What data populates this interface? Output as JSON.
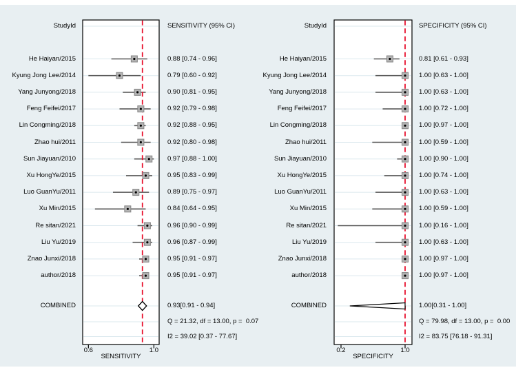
{
  "colors": {
    "background": "#e8eff2",
    "plot_bg": "#ffffff",
    "plot_border": "#000000",
    "gridline": "#dbe8ee",
    "ci_line": "#565656",
    "marker_fill": "#b4b4b4",
    "marker_border": "#848484",
    "marker_dot": "#000000",
    "reference_line": "#e8112d",
    "combined_fill": "#ffffff",
    "combined_border": "#000000",
    "text": "#000000"
  },
  "chart_data": {
    "type": "forest",
    "panels": [
      {
        "id": "sensitivity",
        "study_col_header": "StudyId",
        "value_col_header": "SENSITIVITY (95% CI)",
        "axis": {
          "label": "SENSITIVITY",
          "ticks": [
            0.6,
            1.0
          ],
          "domain": [
            0.565,
            1.032
          ]
        },
        "ref_line": 0.93,
        "rows": [
          {
            "study": "He Haiyan/2015",
            "est": 0.88,
            "lo": 0.74,
            "hi": 0.96,
            "label": "0.88 [0.74 - 0.96]"
          },
          {
            "study": "Kyung Jong Lee/2014",
            "est": 0.79,
            "lo": 0.6,
            "hi": 0.92,
            "label": "0.79 [0.60 - 0.92]"
          },
          {
            "study": "Yang Junyong/2018",
            "est": 0.9,
            "lo": 0.81,
            "hi": 0.95,
            "label": "0.90 [0.81 - 0.95]"
          },
          {
            "study": "Feng Feifei/2017",
            "est": 0.92,
            "lo": 0.79,
            "hi": 0.98,
            "label": "0.92 [0.79 - 0.98]"
          },
          {
            "study": "Lin Congming/2018",
            "est": 0.92,
            "lo": 0.88,
            "hi": 0.95,
            "label": "0.92 [0.88 - 0.95]"
          },
          {
            "study": "Zhao hui/2011",
            "est": 0.92,
            "lo": 0.8,
            "hi": 0.98,
            "label": "0.92 [0.80 - 0.98]"
          },
          {
            "study": "Sun Jiayuan/2010",
            "est": 0.97,
            "lo": 0.88,
            "hi": 1.0,
            "label": "0.97 [0.88 - 1.00]"
          },
          {
            "study": "Xu HongYe/2015",
            "est": 0.95,
            "lo": 0.83,
            "hi": 0.99,
            "label": "0.95 [0.83 - 0.99]"
          },
          {
            "study": "Luo GuanYu/2011",
            "est": 0.89,
            "lo": 0.75,
            "hi": 0.97,
            "label": "0.89 [0.75 - 0.97]"
          },
          {
            "study": "Xu Min/2015",
            "est": 0.84,
            "lo": 0.64,
            "hi": 0.95,
            "label": "0.84 [0.64 - 0.95]"
          },
          {
            "study": "Re sitan/2021",
            "est": 0.96,
            "lo": 0.9,
            "hi": 0.99,
            "label": "0.96 [0.90 - 0.99]"
          },
          {
            "study": "Liu Yu/2019",
            "est": 0.96,
            "lo": 0.87,
            "hi": 0.99,
            "label": "0.96 [0.87 - 0.99]"
          },
          {
            "study": "Znao Junxi/2018",
            "est": 0.95,
            "lo": 0.91,
            "hi": 0.97,
            "label": "0.95 [0.91 - 0.97]"
          },
          {
            "study": "author/2018",
            "est": 0.95,
            "lo": 0.91,
            "hi": 0.97,
            "label": "0.95 [0.91 - 0.97]"
          }
        ],
        "combined": {
          "study": "COMBINED",
          "est": 0.93,
          "lo": 0.91,
          "hi": 0.94,
          "label": "0.93[0.91 - 0.94]",
          "shape": "diamond"
        },
        "q_text": "Q = 21.32, df = 13.00, p =  0.07",
        "i2_text": "I2 = 39.02 [0.37 - 77.67]"
      },
      {
        "id": "specificity",
        "study_col_header": "StudyId",
        "value_col_header": "SPECIFICITY (95% CI)",
        "axis": {
          "label": "SPECIFICITY",
          "ticks": [
            0.2,
            1.0
          ],
          "domain": [
            0.114,
            1.086
          ]
        },
        "ref_line": 1.0,
        "rows": [
          {
            "study": "He Haiyan/2015",
            "est": 0.81,
            "lo": 0.61,
            "hi": 0.93,
            "label": "0.81 [0.61 - 0.93]"
          },
          {
            "study": "Kyung Jong Lee/2014",
            "est": 1.0,
            "lo": 0.63,
            "hi": 1.0,
            "label": "1.00 [0.63 - 1.00]"
          },
          {
            "study": "Yang Junyong/2018",
            "est": 1.0,
            "lo": 0.63,
            "hi": 1.0,
            "label": "1.00 [0.63 - 1.00]"
          },
          {
            "study": "Feng Feifei/2017",
            "est": 1.0,
            "lo": 0.72,
            "hi": 1.0,
            "label": "1.00 [0.72 - 1.00]"
          },
          {
            "study": "Lin Congming/2018",
            "est": 1.0,
            "lo": 0.97,
            "hi": 1.0,
            "label": "1.00 [0.97 - 1.00]"
          },
          {
            "study": "Zhao hui/2011",
            "est": 1.0,
            "lo": 0.59,
            "hi": 1.0,
            "label": "1.00 [0.59 - 1.00]"
          },
          {
            "study": "Sun Jiayuan/2010",
            "est": 1.0,
            "lo": 0.9,
            "hi": 1.0,
            "label": "1.00 [0.90 - 1.00]"
          },
          {
            "study": "Xu HongYe/2015",
            "est": 1.0,
            "lo": 0.74,
            "hi": 1.0,
            "label": "1.00 [0.74 - 1.00]"
          },
          {
            "study": "Luo GuanYu/2011",
            "est": 1.0,
            "lo": 0.63,
            "hi": 1.0,
            "label": "1.00 [0.63 - 1.00]"
          },
          {
            "study": "Xu Min/2015",
            "est": 1.0,
            "lo": 0.59,
            "hi": 1.0,
            "label": "1.00 [0.59 - 1.00]"
          },
          {
            "study": "Re sitan/2021",
            "est": 1.0,
            "lo": 0.16,
            "hi": 1.0,
            "label": "1.00 [0.16 - 1.00]"
          },
          {
            "study": "Liu Yu/2019",
            "est": 1.0,
            "lo": 0.63,
            "hi": 1.0,
            "label": "1.00 [0.63 - 1.00]"
          },
          {
            "study": "Znao Junxi/2018",
            "est": 1.0,
            "lo": 0.97,
            "hi": 1.0,
            "label": "1.00 [0.97 - 1.00]"
          },
          {
            "study": "author/2018",
            "est": 1.0,
            "lo": 0.97,
            "hi": 1.0,
            "label": "1.00 [0.97 - 1.00]"
          }
        ],
        "combined": {
          "study": "COMBINED",
          "est": 1.0,
          "lo": 0.31,
          "hi": 1.0,
          "label": "1.00[0.31 - 1.00]",
          "shape": "triangle"
        },
        "q_text": "Q = 79.98, df = 13.00, p =  0.00",
        "i2_text": "I2 = 83.75 [76.18 - 91.31]"
      }
    ]
  }
}
